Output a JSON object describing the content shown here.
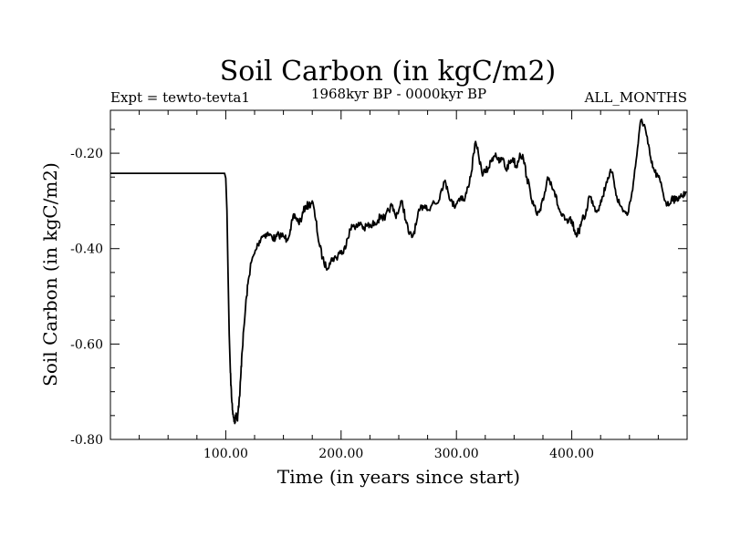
{
  "chart_data": {
    "type": "line",
    "title": "Soil Carbon (in kgC/m2)",
    "subtitle": "1968kyr BP - 0000kyr BP",
    "left_label": "Expt = tewto-tevta1",
    "right_label": "ALL_MONTHS",
    "xlabel": "Time (in years since start)",
    "ylabel": "Soil Carbon (in kgC/m2)",
    "xlim": [
      0,
      500
    ],
    "ylim": [
      -0.8,
      -0.11
    ],
    "x_ticks": [
      {
        "value": 100,
        "label": "100.00"
      },
      {
        "value": 200,
        "label": "200.00"
      },
      {
        "value": 300,
        "label": "300.00"
      },
      {
        "value": 400,
        "label": "400.00"
      }
    ],
    "y_ticks": [
      {
        "value": -0.8,
        "label": "-0.80"
      },
      {
        "value": -0.6,
        "label": "-0.60"
      },
      {
        "value": -0.4,
        "label": "-0.40"
      },
      {
        "value": -0.2,
        "label": "-0.20"
      }
    ],
    "series": [
      {
        "name": "Soil Carbon",
        "color": "#000000",
        "x": [
          0,
          99,
          100,
          101,
          102,
          103,
          104,
          105,
          106,
          107,
          108,
          109,
          110,
          111,
          112,
          113,
          114,
          116,
          118,
          120,
          122,
          125,
          128,
          131,
          134,
          137,
          140,
          143,
          146,
          150,
          153,
          156,
          158,
          160,
          163,
          166,
          169,
          172,
          175,
          178,
          181,
          184,
          187,
          190,
          193,
          196,
          199,
          202,
          205,
          208,
          211,
          214,
          217,
          220,
          223,
          226,
          229,
          232,
          235,
          238,
          241,
          244,
          247,
          250,
          253,
          256,
          259,
          262,
          265,
          268,
          271,
          274,
          277,
          280,
          283,
          286,
          289,
          292,
          295,
          298,
          301,
          304,
          307,
          310,
          313,
          316,
          319,
          322,
          325,
          328,
          331,
          334,
          337,
          340,
          343,
          346,
          349,
          352,
          355,
          358,
          361,
          364,
          367,
          370,
          373,
          376,
          379,
          382,
          385,
          388,
          391,
          394,
          397,
          400,
          403,
          406,
          409,
          412,
          415,
          418,
          421,
          424,
          427,
          430,
          433,
          436,
          439,
          442,
          445,
          448,
          451,
          454,
          457,
          460,
          463,
          466,
          469,
          472,
          475,
          478,
          481,
          484,
          487,
          490,
          493,
          496,
          499
        ],
        "values": [
          -0.242,
          -0.242,
          -0.252,
          -0.32,
          -0.45,
          -0.58,
          -0.66,
          -0.71,
          -0.74,
          -0.755,
          -0.765,
          -0.745,
          -0.76,
          -0.73,
          -0.71,
          -0.67,
          -0.62,
          -0.56,
          -0.5,
          -0.46,
          -0.43,
          -0.41,
          -0.39,
          -0.375,
          -0.37,
          -0.37,
          -0.375,
          -0.38,
          -0.37,
          -0.375,
          -0.38,
          -0.36,
          -0.34,
          -0.33,
          -0.345,
          -0.335,
          -0.31,
          -0.31,
          -0.3,
          -0.34,
          -0.39,
          -0.42,
          -0.44,
          -0.43,
          -0.42,
          -0.42,
          -0.405,
          -0.41,
          -0.38,
          -0.36,
          -0.35,
          -0.355,
          -0.345,
          -0.36,
          -0.35,
          -0.355,
          -0.345,
          -0.34,
          -0.33,
          -0.34,
          -0.32,
          -0.31,
          -0.33,
          -0.32,
          -0.3,
          -0.34,
          -0.37,
          -0.375,
          -0.35,
          -0.32,
          -0.31,
          -0.31,
          -0.32,
          -0.3,
          -0.305,
          -0.285,
          -0.26,
          -0.27,
          -0.3,
          -0.31,
          -0.3,
          -0.29,
          -0.3,
          -0.27,
          -0.24,
          -0.18,
          -0.2,
          -0.24,
          -0.24,
          -0.23,
          -0.21,
          -0.2,
          -0.22,
          -0.21,
          -0.235,
          -0.22,
          -0.21,
          -0.23,
          -0.2,
          -0.21,
          -0.25,
          -0.28,
          -0.31,
          -0.33,
          -0.32,
          -0.29,
          -0.25,
          -0.26,
          -0.28,
          -0.31,
          -0.33,
          -0.34,
          -0.345,
          -0.34,
          -0.37,
          -0.365,
          -0.34,
          -0.33,
          -0.29,
          -0.3,
          -0.32,
          -0.31,
          -0.29,
          -0.26,
          -0.24,
          -0.25,
          -0.29,
          -0.31,
          -0.32,
          -0.33,
          -0.3,
          -0.25,
          -0.19,
          -0.13,
          -0.14,
          -0.18,
          -0.22,
          -0.24,
          -0.25,
          -0.27,
          -0.3,
          -0.31,
          -0.29,
          -0.3,
          -0.29,
          -0.29,
          -0.28
        ]
      }
    ]
  }
}
